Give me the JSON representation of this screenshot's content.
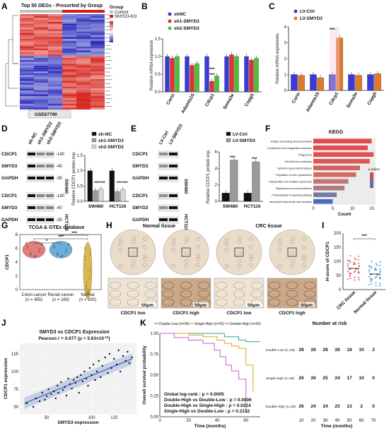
{
  "panels": {
    "A": {
      "letter": "A",
      "title": "Top 50 DEGs - Presorted by Group",
      "legend_title": "Group",
      "legend": [
        "Control",
        "SMYD3-KO"
      ],
      "dataset": "GSE67790",
      "colors": {
        "control": "#c0c0c0",
        "ko": "#d01c1c",
        "high": "#d7261e",
        "low": "#2b2dbb",
        "mid": "#ffffff"
      }
    },
    "B": {
      "letter": "B",
      "chart_data": {
        "type": "bar",
        "ylabel": "Relative mRNA expression",
        "ylim": [
          0,
          1.5
        ],
        "yticks": [
          "0.0",
          "0.5",
          "1.0",
          "1.5"
        ],
        "categories": [
          "Corin",
          "Adamts15",
          "Cdcp1",
          "Sema3e",
          "Cspg5"
        ],
        "series": [
          {
            "name": "shNC",
            "color": "#3a3ad9",
            "values": [
              1.0,
              1.0,
              1.0,
              1.0,
              1.0
            ]
          },
          {
            "name": "sh1-SMYD3",
            "color": "#e03030",
            "values": [
              0.95,
              0.75,
              0.3,
              1.05,
              0.9
            ]
          },
          {
            "name": "sh2-SMYD3",
            "color": "#4bbf3a",
            "values": [
              1.0,
              0.8,
              0.45,
              1.0,
              0.95
            ]
          }
        ],
        "annotations": [
          "***",
          "***"
        ]
      }
    },
    "C": {
      "letter": "C",
      "chart_data": {
        "type": "bar",
        "ylabel": "Relative mRNA expression",
        "ylim": [
          0,
          4
        ],
        "yticks": [
          "0",
          "1",
          "2",
          "3",
          "4"
        ],
        "categories": [
          "Corin",
          "Adamts15",
          "Cdcp1",
          "Sema3e",
          "Cspg5"
        ],
        "series": [
          {
            "name": "LV-Ctrl",
            "color": "#3a3ad9",
            "values": [
              1.0,
              1.0,
              1.0,
              1.0,
              1.0
            ]
          },
          {
            "name": "LV-SMYD3",
            "color": "#e07a2a",
            "values": [
              0.95,
              0.8,
              3.3,
              0.95,
              1.05
            ]
          }
        ],
        "annotations": [
          "***"
        ]
      }
    },
    "D": {
      "letter": "D",
      "lanes": [
        "sh-NC",
        "sh1-SMYD3",
        "sh2-SMYD3"
      ],
      "rows": [
        "CDCP1",
        "SMYD3",
        "GAPDH",
        "CDCP1",
        "SMYD3",
        "GAPDH"
      ],
      "kda": [
        "-140",
        "-40",
        "-35",
        "-140",
        "-40",
        "-35"
      ],
      "cell_lines": [
        "SW480",
        "HCT116"
      ],
      "chart_data": {
        "type": "bar",
        "ylabel": "Relative CDCP1 protein exp.",
        "ylim": [
          0,
          1.5
        ],
        "yticks": [
          "0.0",
          "0.5",
          "1.0",
          "1.5"
        ],
        "categories": [
          "SW480",
          "HCT116"
        ],
        "series": [
          {
            "name": "sh-NC",
            "color": "#111111",
            "values": [
              1.0,
              1.0
            ]
          },
          {
            "name": "sh1-SMYD3",
            "color": "#9a9a9a",
            "values": [
              0.35,
              0.32
            ]
          },
          {
            "name": "sh2-SMYD3",
            "color": "#d8d8d8",
            "values": [
              0.4,
              0.38
            ]
          }
        ],
        "annotations": [
          "***",
          "***",
          "***",
          "***"
        ]
      }
    },
    "E": {
      "letter": "E",
      "lanes": [
        "LV-Ctrl",
        "LV-SMYD3"
      ],
      "rows": [
        "CDCP1",
        "SMYD3",
        "GAPDH",
        "CDCP1",
        "SMYD3",
        "GAPDH"
      ],
      "cell_lines": [
        "SW480",
        "HCT116"
      ],
      "chart_data": {
        "type": "bar",
        "ylabel": "Relative CDCP1 protein exp.",
        "ylim": [
          0,
          6
        ],
        "yticks": [
          "0",
          "2",
          "4",
          "6"
        ],
        "categories": [
          "SW480",
          "HCT116"
        ],
        "series": [
          {
            "name": "LV-Ctrl",
            "color": "#111111",
            "values": [
              1.0,
              1.0
            ]
          },
          {
            "name": "LV-SMYD3",
            "color": "#9a9a9a",
            "values": [
              5.0,
              4.8
            ]
          }
        ],
        "annotations": [
          "***",
          "***"
        ]
      }
    },
    "F": {
      "letter": "F",
      "chart_data": {
        "type": "bar",
        "title": "KEGG",
        "xlabel": "Count",
        "xticks": [
          "0",
          "5",
          "10",
          "15"
        ],
        "xlim": [
          0,
          16
        ],
        "legend_title": "p.adjust",
        "categories": [
          "Antigen processing and presentation",
          "Complement and coagulation cascades",
          "Phagosome",
          "Cell adhesion molecules",
          "Systemic lupus erythematosus",
          "Regulation of actin cytoskeleton",
          "Natural killer cell mediated cytotoxicity",
          "Staphylococcus aureus infection",
          "Phospholipase D signaling pathway",
          "Neutrophil extracellular trap formation"
        ],
        "values": [
          15,
          14,
          15.5,
          14.5,
          12,
          11,
          9,
          8,
          6,
          5
        ],
        "colors": [
          "#e34a4a",
          "#e34a4a",
          "#e0504e",
          "#dc5856",
          "#d8605e",
          "#d26a66",
          "#c8746e",
          "#b07c84",
          "#7a78a4",
          "#4a6cc4"
        ]
      }
    },
    "G": {
      "letter": "G",
      "title": "TCGA & GTEx database",
      "ylabel": "CDCP1",
      "groups": [
        {
          "name": "Colon cancer",
          "n": "(n = 455)",
          "color": "#d9534f",
          "median": 5.8
        },
        {
          "name": "Rectal cancer",
          "n": "(n = 165)",
          "color": "#3e92cc",
          "median": 5.8
        },
        {
          "name": "Normal",
          "n": "(n = 830)",
          "color": "#d4a017",
          "median": 2.8
        }
      ],
      "yticks": [
        "0",
        "2",
        "4",
        "6",
        "8"
      ],
      "annotations": [
        "*",
        "***",
        "***"
      ]
    },
    "H": {
      "letter": "H",
      "headers": [
        "Normal tissue",
        "CRC tissue"
      ],
      "captions": [
        "CDCP1 low",
        "CDCP1 high",
        "CDCP1 low",
        "CDCP1 high"
      ],
      "scale": "50μm"
    },
    "I": {
      "letter": "I",
      "ylabel": "H-score of CDCP1",
      "yticks": [
        "0",
        "50",
        "100",
        "150",
        "200"
      ],
      "groups": [
        "CRC tissue",
        "Normal tissue"
      ],
      "annotation": "***",
      "chart_data": {
        "type": "scatter",
        "groups": [
          "CRC tissue",
          "Normal tissue"
        ],
        "means": [
          75,
          55
        ],
        "ylim": [
          0,
          200
        ]
      }
    },
    "J": {
      "letter": "J",
      "title": "SMYD3 vs CDCP1 Expression",
      "subtitle": "Pearson r = 0.677 (p = 5.63×10",
      "subtitle_sup": "-12",
      "subtitle_end": ")",
      "xlabel": "SMYD3 expression",
      "ylabel": "CDCP1 expression",
      "xticks": [
        "50",
        "100",
        "125"
      ],
      "yticks": [
        "50",
        "75",
        "100",
        "125"
      ],
      "chart_data": {
        "type": "scatter",
        "xlabel": "SMYD3 expression",
        "ylabel": "CDCP1 expression",
        "xlim": [
          20,
          150
        ],
        "ylim": [
          40,
          140
        ],
        "x": [
          28,
          35,
          38,
          42,
          45,
          48,
          50,
          52,
          55,
          58,
          60,
          62,
          63,
          66,
          68,
          70,
          72,
          74,
          76,
          78,
          80,
          82,
          84,
          86,
          88,
          90,
          92,
          94,
          96,
          98,
          100,
          102,
          104,
          106,
          108,
          110,
          112,
          115,
          118,
          120,
          122,
          125,
          128,
          130,
          132,
          135,
          138,
          140,
          142,
          145
        ],
        "y": [
          55,
          50,
          62,
          58,
          70,
          60,
          65,
          75,
          68,
          72,
          62,
          80,
          70,
          85,
          74,
          78,
          66,
          90,
          82,
          76,
          88,
          84,
          92,
          70,
          95,
          86,
          100,
          90,
          80,
          105,
          95,
          110,
          88,
          100,
          115,
          92,
          108,
          120,
          98,
          125,
          105,
          118,
          110,
          130,
          100,
          122,
          115,
          128,
          112,
          120
        ],
        "fit": [
          [
            25,
            55
          ],
          [
            145,
            118
          ]
        ]
      }
    },
    "K": {
      "letter": "K",
      "legend": [
        {
          "label": "Double-Low (n=28)",
          "color": "#2ca089"
        },
        {
          "label": "Single-High (n=26)",
          "color": "#d9a520"
        },
        {
          "label": "Double-High (n=26)",
          "color": "#c85ec8"
        }
      ],
      "ylabel": "Overall survival probability",
      "xlabel": "Time (months)",
      "yticks": [
        "0.00",
        "0.25",
        "0.50",
        "0.75",
        "1.00"
      ],
      "xticks": [
        "0",
        "20",
        "40",
        "60"
      ],
      "stats": [
        "Global log-rank : p = 0.0005",
        "Double-High vs Double-Low : p = 0.0006",
        "Double-High vs Single-High : p = 0.0214",
        "Single-High vs Double-Low : p = 0.2132"
      ],
      "risk_title": "Number at risk",
      "risk_xlabel": "Time (months)",
      "risk_xticks": [
        "10",
        "20",
        "30",
        "40",
        "50",
        "60",
        "70"
      ],
      "risk_rows": [
        {
          "label": "Double-Low (n=28)",
          "values": [
            "28",
            "28",
            "28",
            "28",
            "18",
            "10",
            "2"
          ]
        },
        {
          "label": "Single-High (n=26)",
          "values": [
            "26",
            "26",
            "25",
            "24",
            "17",
            "10",
            "0"
          ]
        },
        {
          "label": "Double-High (n=26)",
          "values": [
            "26",
            "24",
            "24",
            "23",
            "13",
            "2",
            "0"
          ]
        }
      ],
      "chart_data": {
        "type": "line",
        "xlim": [
          0,
          70
        ],
        "ylim": [
          0,
          1
        ],
        "series": [
          {
            "name": "Double-Low (n=28)",
            "x": [
              0,
              20,
              35,
              45,
              50,
              55,
              60,
              70
            ],
            "y": [
              1.0,
              1.0,
              1.0,
              0.96,
              0.96,
              0.92,
              0.9,
              0.9
            ]
          },
          {
            "name": "Single-High (n=26)",
            "x": [
              0,
              20,
              30,
              40,
              45,
              50,
              55,
              60,
              65
            ],
            "y": [
              1.0,
              0.98,
              0.96,
              0.92,
              0.88,
              0.85,
              0.82,
              0.62,
              0.3
            ]
          },
          {
            "name": "Double-High (n=26)",
            "x": [
              0,
              10,
              20,
              30,
              38,
              42,
              46,
              50,
              55,
              60
            ],
            "y": [
              1.0,
              0.95,
              0.92,
              0.88,
              0.8,
              0.72,
              0.62,
              0.55,
              0.45,
              0.05
            ]
          }
        ]
      }
    }
  }
}
